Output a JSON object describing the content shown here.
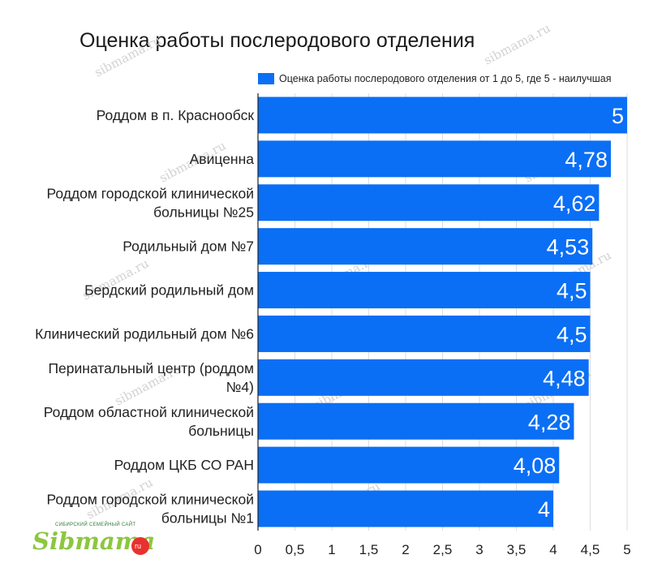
{
  "chart_data": {
    "type": "bar",
    "orientation": "horizontal",
    "title": "Оценка работы послеродового отделения",
    "categories": [
      "Роддом в п. Краснообск",
      "Авиценна",
      "Роддом городской клинической больницы №25",
      "Родильный дом №7",
      "Бердский родильный дом",
      "Клинический родильный дом №6",
      "Перинатальный центр (роддом №4)",
      "Роддом областной клинической больницы",
      "Роддом ЦКБ СО РАН",
      "Роддом городской клинической больницы №1"
    ],
    "category_lines": [
      [
        "Роддом в п. Краснообск"
      ],
      [
        "Авиценна"
      ],
      [
        "Роддом городской клинической",
        "больницы №25"
      ],
      [
        "Родильный дом №7"
      ],
      [
        "Бердский родильный дом"
      ],
      [
        "Клинический родильный дом №6"
      ],
      [
        "Перинатальный центр (роддом",
        "№4)"
      ],
      [
        "Роддом областной клинической",
        "больницы"
      ],
      [
        "Роддом ЦКБ СО РАН"
      ],
      [
        "Роддом городской клинической",
        "больницы №1"
      ]
    ],
    "series": [
      {
        "name": "Оценка работы послеродового отделения от 1 до 5, где 5 - наилучшая",
        "color": "#0a6ff5",
        "values": [
          5,
          4.78,
          4.62,
          4.53,
          4.5,
          4.5,
          4.48,
          4.28,
          4.08,
          4
        ],
        "labels": [
          "5",
          "4,78",
          "4,62",
          "4,53",
          "4,5",
          "4,5",
          "4,48",
          "4,28",
          "4,08",
          "4"
        ]
      }
    ],
    "xlim": [
      0,
      5
    ],
    "xticks": [
      0,
      0.5,
      1,
      1.5,
      2,
      2.5,
      3,
      3.5,
      4,
      4.5,
      5
    ],
    "xtick_labels": [
      "0",
      "0,5",
      "1",
      "1,5",
      "2",
      "2,5",
      "3",
      "3,5",
      "4",
      "4,5",
      "5"
    ],
    "xlabel": "",
    "ylabel": "",
    "grid": true,
    "legend": "top-right",
    "colors": {
      "bar": "#0a6ff5",
      "grid": "#dddddd",
      "axis": "#222222"
    }
  },
  "watermark": {
    "text": "sibmama.ru"
  },
  "logo": {
    "tagline": "СИБИРСКИЙ СЕМЕЙНЫЙ САЙТ",
    "word": "Sibmama",
    "suffix": "ru"
  }
}
